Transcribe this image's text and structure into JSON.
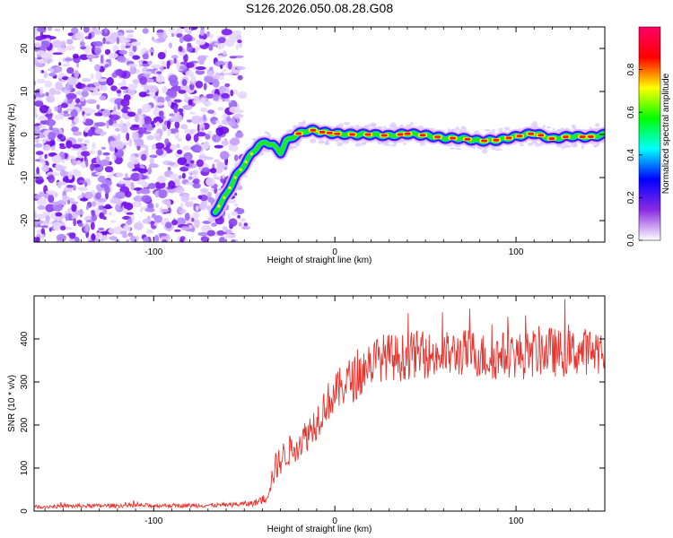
{
  "title": "S126.2026.050.08.28.G08",
  "colors": {
    "line": "#e8342e",
    "axis": "#000000"
  },
  "chart_data": [
    {
      "type": "heatmap",
      "name": "spectrogram",
      "xlabel": "Height of straight line (km)",
      "ylabel": "Frequency (Hz)",
      "xlim": [
        -166,
        149
      ],
      "ylim": [
        -25,
        25
      ],
      "xticks": [
        -100,
        0,
        100
      ],
      "yticks": [
        -20,
        -10,
        0,
        10,
        20
      ],
      "noise_region_x": [
        -166,
        -48
      ],
      "ridge": {
        "x": [
          -66,
          -60,
          -55,
          -50,
          -46,
          -42,
          -38,
          -34,
          -30,
          -27,
          -24,
          -20,
          -16,
          -12,
          -8,
          -4,
          0,
          10,
          20,
          30,
          40,
          50,
          60,
          70,
          80,
          90,
          100,
          110,
          120,
          130,
          140,
          149
        ],
        "y": [
          -18,
          -14,
          -10,
          -7,
          -4.5,
          -2.5,
          -1.8,
          -2.5,
          -4.2,
          -1.6,
          -0.8,
          0.2,
          0.8,
          1.0,
          0.6,
          0.4,
          0.2,
          0.0,
          0.0,
          -0.3,
          0.2,
          -0.2,
          -0.8,
          -0.9,
          -1.5,
          -1.3,
          -0.5,
          0.3,
          -1.0,
          -0.4,
          -0.6,
          0.0
        ]
      },
      "colorbar": {
        "label": "Normalized spectral amplitude",
        "range": [
          0.0,
          1.0
        ],
        "ticks": [
          "0.0",
          "0.2",
          "0.4",
          "0.6",
          "0.8"
        ],
        "colors": [
          "#ffffff",
          "#8a2be2",
          "#0000ff",
          "#00ffff",
          "#00ff00",
          "#ffff00",
          "#ff0000",
          "#ff0066"
        ]
      }
    },
    {
      "type": "line",
      "name": "snr",
      "xlabel": "Height of straight line (km)",
      "ylabel": "SNR (10 * v/v)",
      "xlim": [
        -166,
        149
      ],
      "ylim": [
        0,
        500
      ],
      "xticks": [
        -100,
        0,
        100
      ],
      "yticks": [
        0,
        100,
        200,
        300,
        400
      ],
      "series": [
        {
          "name": "SNR",
          "x": [
            -166,
            -140,
            -110,
            -80,
            -60,
            -45,
            -38,
            -33,
            -28,
            -22,
            -16,
            -10,
            -5,
            0,
            6,
            12,
            18,
            22,
            28,
            35,
            45,
            55,
            65,
            75,
            85,
            95,
            105,
            115,
            125,
            135,
            149
          ],
          "y": [
            10,
            12,
            13,
            13,
            14,
            18,
            30,
            100,
            130,
            150,
            175,
            210,
            250,
            270,
            300,
            310,
            340,
            350,
            360,
            355,
            365,
            360,
            365,
            370,
            355,
            365,
            360,
            375,
            365,
            370,
            375
          ],
          "noise_amp": [
            4,
            5,
            5,
            5,
            5,
            7,
            12,
            35,
            35,
            38,
            40,
            45,
            45,
            48,
            52,
            55,
            55,
            55,
            55,
            55,
            55,
            55,
            55,
            55,
            55,
            55,
            55,
            60,
            55,
            55,
            55
          ]
        }
      ]
    }
  ]
}
